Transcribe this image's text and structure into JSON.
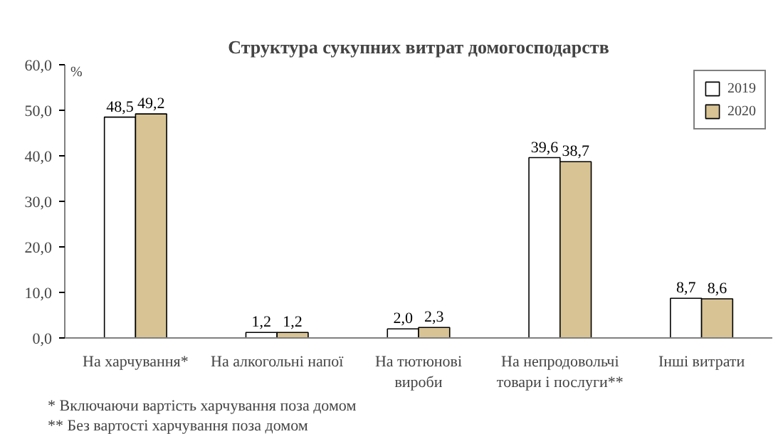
{
  "chart_data": {
    "type": "bar",
    "title": "Структура сукупних витрат домогосподарств",
    "ylabel": "%",
    "categories": [
      "На харчування*",
      "На алкогольні напої",
      "На тютюнові\nвироби",
      "На непродовольчі\nтовари і послуги**",
      "Інші витрати"
    ],
    "series": [
      {
        "name": "2019",
        "color": "#ffffff",
        "values": [
          48.5,
          1.2,
          2.0,
          39.6,
          8.7
        ],
        "value_labels": [
          "48,5",
          "1,2",
          "2,0",
          "39,6",
          "8,7"
        ]
      },
      {
        "name": "2020",
        "color": "#d8c394",
        "values": [
          49.2,
          1.2,
          2.3,
          38.7,
          8.6
        ],
        "value_labels": [
          "49,2",
          "1,2",
          "2,3",
          "38,7",
          "8,6"
        ]
      }
    ],
    "ylim": [
      0,
      60
    ],
    "yticks": [
      {
        "value": 0,
        "label": "0,0"
      },
      {
        "value": 10,
        "label": "10,0"
      },
      {
        "value": 20,
        "label": "20,0"
      },
      {
        "value": 30,
        "label": "30,0"
      },
      {
        "value": 40,
        "label": "40,0"
      },
      {
        "value": 50,
        "label": "50,0"
      },
      {
        "value": 60,
        "label": "60,0"
      }
    ],
    "legend": "top right",
    "grid": false,
    "annotations": [
      "* Включаючи вартість харчування поза домом",
      "** Без вартості харчування поза домом"
    ]
  }
}
